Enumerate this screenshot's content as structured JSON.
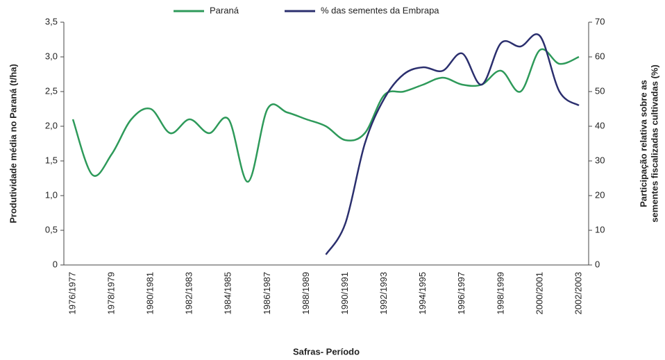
{
  "chart_data": {
    "type": "line",
    "legend": "top",
    "xlabel": "Safras- Período",
    "ylabel": "Produtividade média no Paraná (t/ha)",
    "y2label": [
      "Participação relativa sobre as",
      "sementes fiscalizadas cultivadas (%)"
    ],
    "categories": [
      "1976/1977",
      null,
      "1978/1979",
      null,
      "1980/1981",
      null,
      "1982/1983",
      null,
      "1984/1985",
      null,
      "1986/1987",
      null,
      "1988/1989",
      null,
      "1990/1991",
      null,
      "1992/1993",
      null,
      "1994/1995",
      null,
      "1996/1997",
      null,
      "1998/1999",
      null,
      "2000/2001",
      null,
      "2002/2003"
    ],
    "series": [
      {
        "name": "Paraná",
        "color": "#2e9a5a",
        "axis": "y",
        "values": [
          2.1,
          1.3,
          1.6,
          2.1,
          2.25,
          1.9,
          2.1,
          1.9,
          2.1,
          1.2,
          2.25,
          2.2,
          2.1,
          2.0,
          1.8,
          1.9,
          2.45,
          2.5,
          2.6,
          2.7,
          2.6,
          2.6,
          2.8,
          2.5,
          3.1,
          2.9,
          3.0
        ]
      },
      {
        "name": "% das sementes da Embrapa",
        "color": "#2b2f6e",
        "axis": "y2",
        "values": [
          null,
          null,
          null,
          null,
          null,
          null,
          null,
          null,
          null,
          null,
          null,
          null,
          null,
          3,
          12,
          35,
          48,
          55,
          57,
          56,
          61,
          52,
          64,
          63,
          66,
          50,
          46
        ]
      }
    ],
    "ylim": [
      0,
      3.5
    ],
    "yticks": [
      0,
      {
        "value": 0.5,
        "label": "0,5"
      },
      {
        "value": 1.0,
        "label": "1,0"
      },
      {
        "value": 1.5,
        "label": "1,5"
      },
      {
        "value": 2.0,
        "label": "2,0"
      },
      {
        "value": 2.5,
        "label": "2,5"
      },
      {
        "value": 3.0,
        "label": "3,0"
      },
      {
        "value": 3.5,
        "label": "3,5"
      }
    ],
    "y2lim": [
      0,
      70
    ],
    "y2ticks": [
      0,
      10,
      20,
      30,
      40,
      50,
      60,
      70
    ]
  }
}
